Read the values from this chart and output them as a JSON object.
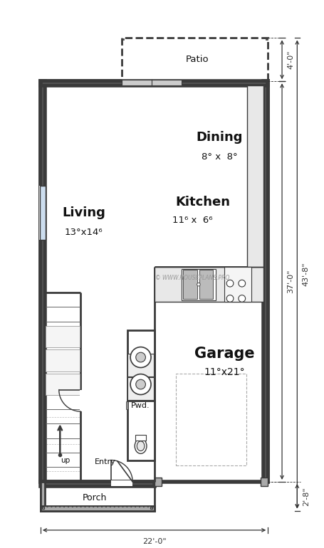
{
  "wall_color": "#3a3a3a",
  "fill_white": "#ffffff",
  "fill_light": "#f0f0f0",
  "fill_gray": "#cccccc",
  "fill_med_gray": "#888888",
  "fill_dark_gray": "#555555",
  "rooms": {
    "living_label": "Living",
    "living_dim": "13°x14⁶",
    "dining_label": "Dining",
    "dining_dim": "8° x  8°",
    "kitchen_label": "Kitchen",
    "kitchen_dim": "11⁶ x  6⁶",
    "garage_label": "Garage",
    "garage_dim": "11°x21°",
    "porch_label": "Porch",
    "patio_label": "Patio",
    "entry_label": "Entry",
    "pwd_label": "Pwd.",
    "up_label": "up"
  },
  "dims": {
    "bottom": "22'-0\"",
    "right_total": "43'-8\"",
    "right_inner": "37'-0\"",
    "patio_h": "4'-0\"",
    "porch_h": "2'-8\""
  },
  "watermark": "© WWW.HOUSEPLANS.PRO"
}
